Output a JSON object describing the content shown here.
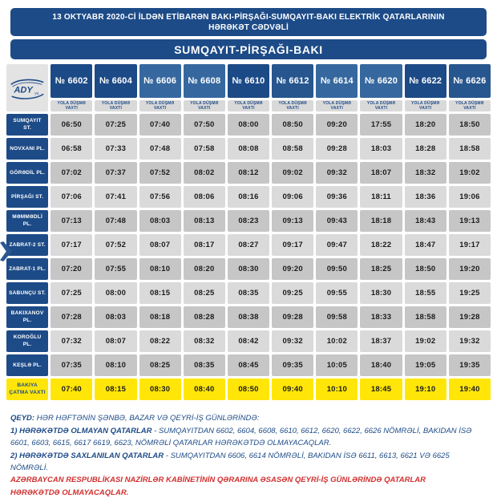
{
  "colors": {
    "primary_blue": "#1d4b87",
    "highlight_yellow": "#ffe608",
    "row_gray_dark": "#c6c6c6",
    "row_gray_light": "#dadada",
    "strip_gray": "#d9d9d9",
    "logo_cell_gray": "#e3e3e3",
    "note_red": "#d12f2f"
  },
  "header": {
    "title_line1": "13 OKTYABR 2020-Cİ İLDƏN ETİBARƏN BAKI-PİRŞAĞI-SUMQAYIT-BAKI ELEKTRİK QATARLARININ",
    "title_line2": "HƏRƏKƏT CƏDVƏLİ",
    "route_title": "SUMQAYIT-PİRŞAĞI-BAKI"
  },
  "logo": {
    "name": "ADY",
    "suffix": "yq."
  },
  "table": {
    "departure_label": "YOLA DÜŞMƏ VAXTI",
    "trains": [
      {
        "number": "№ 6602",
        "color": "#1c4a86"
      },
      {
        "number": "№ 6604",
        "color": "#1c4a86"
      },
      {
        "number": "№ 6606",
        "color": "#36689f"
      },
      {
        "number": "№ 6608",
        "color": "#36689f"
      },
      {
        "number": "№ 6610",
        "color": "#1c4a86"
      },
      {
        "number": "№ 6612",
        "color": "#27568e"
      },
      {
        "number": "№ 6614",
        "color": "#36689f"
      },
      {
        "number": "№ 6620",
        "color": "#36689f"
      },
      {
        "number": "№ 6622",
        "color": "#1c4a86"
      },
      {
        "number": "№ 6626",
        "color": "#27568e"
      }
    ],
    "rows": [
      {
        "station": "SUMQAYIT ST.",
        "times": [
          "06:50",
          "07:25",
          "07:40",
          "07:50",
          "08:00",
          "08:50",
          "09:20",
          "17:55",
          "18:20",
          "18:50"
        ]
      },
      {
        "station": "NOVXANI PL.",
        "times": [
          "06:58",
          "07:33",
          "07:48",
          "07:58",
          "08:08",
          "08:58",
          "09:28",
          "18:03",
          "18:28",
          "18:58"
        ]
      },
      {
        "station": "GÖRƏDİL PL.",
        "times": [
          "07:02",
          "07:37",
          "07:52",
          "08:02",
          "08:12",
          "09:02",
          "09:32",
          "18:07",
          "18:32",
          "19:02"
        ]
      },
      {
        "station": "PİRŞAĞI ST.",
        "times": [
          "07:06",
          "07:41",
          "07:56",
          "08:06",
          "08:16",
          "09:06",
          "09:36",
          "18:11",
          "18:36",
          "19:06"
        ]
      },
      {
        "station": "MƏMMƏDLİ PL.",
        "times": [
          "07:13",
          "07:48",
          "08:03",
          "08:13",
          "08:23",
          "09:13",
          "09:43",
          "18:18",
          "18:43",
          "19:13"
        ]
      },
      {
        "station": "ZABRAT-2 ST.",
        "times": [
          "07:17",
          "07:52",
          "08:07",
          "08:17",
          "08:27",
          "09:17",
          "09:47",
          "18:22",
          "18:47",
          "19:17"
        ]
      },
      {
        "station": "ZABRAT-1 PL.",
        "times": [
          "07:20",
          "07:55",
          "08:10",
          "08:20",
          "08:30",
          "09:20",
          "09:50",
          "18:25",
          "18:50",
          "19:20"
        ]
      },
      {
        "station": "SABUNÇU ST.",
        "times": [
          "07:25",
          "08:00",
          "08:15",
          "08:25",
          "08:35",
          "09:25",
          "09:55",
          "18:30",
          "18:55",
          "19:25"
        ]
      },
      {
        "station": "BAKIXANOV PL.",
        "times": [
          "07:28",
          "08:03",
          "08:18",
          "08:28",
          "08:38",
          "09:28",
          "09:58",
          "18:33",
          "18:58",
          "19:28"
        ]
      },
      {
        "station": "KOROĞLU PL.",
        "times": [
          "07:32",
          "08:07",
          "08:22",
          "08:32",
          "08:42",
          "09:32",
          "10:02",
          "18:37",
          "19:02",
          "19:32"
        ]
      },
      {
        "station": "KEŞLƏ PL.",
        "times": [
          "07:35",
          "08:10",
          "08:25",
          "08:35",
          "08:45",
          "09:35",
          "10:05",
          "18:40",
          "19:05",
          "19:35"
        ]
      },
      {
        "station": "BAKIYA ÇATMA VAXTI",
        "times": [
          "07:40",
          "08:15",
          "08:30",
          "08:40",
          "08:50",
          "09:40",
          "10:10",
          "18:45",
          "19:10",
          "19:40"
        ],
        "highlight": true
      }
    ]
  },
  "notes": {
    "heading_label": "QEYD:",
    "heading_text": "  HƏR HƏFTƏNİN  ŞƏNBƏ, BAZAR  VƏ  QEYRİ-İŞ GÜNLƏRİNDƏ:",
    "note1_label": "1) HƏRƏKƏTDƏ OLMAYAN QATARLAR",
    "note1_text": "  - SUMQAYITDAN  6602, 6604,  6608, 6610, 6612,  6620, 6622, 6626 NÖMRƏLİ, BAKIDAN  İSƏ 6601, 6603, 6615, 6617  6619, 6623,  NÖMRƏLİ  QATARLAR HƏRƏKƏTDƏ OLMAYACAQLAR.",
    "note2_label": "2) HƏRƏKƏTDƏ SAXLANILAN QATARLAR",
    "note2_text": "  - SUMQAYITDAN 6606, 6614 NÖMRƏLİ, BAKIDAN İSƏ 6611, 6613, 6621 VƏ 6625 NÖMRƏLİ.",
    "note_red": "AZƏRBAYCAN RESPUBLİKASI NAZİRLƏR KABİNETİNİN QƏRARINA ƏSASƏN QEYRİ-İŞ GÜNLƏRİNDƏ QATARLAR HƏRƏKƏTDƏ OLMAYACAQLAR."
  }
}
